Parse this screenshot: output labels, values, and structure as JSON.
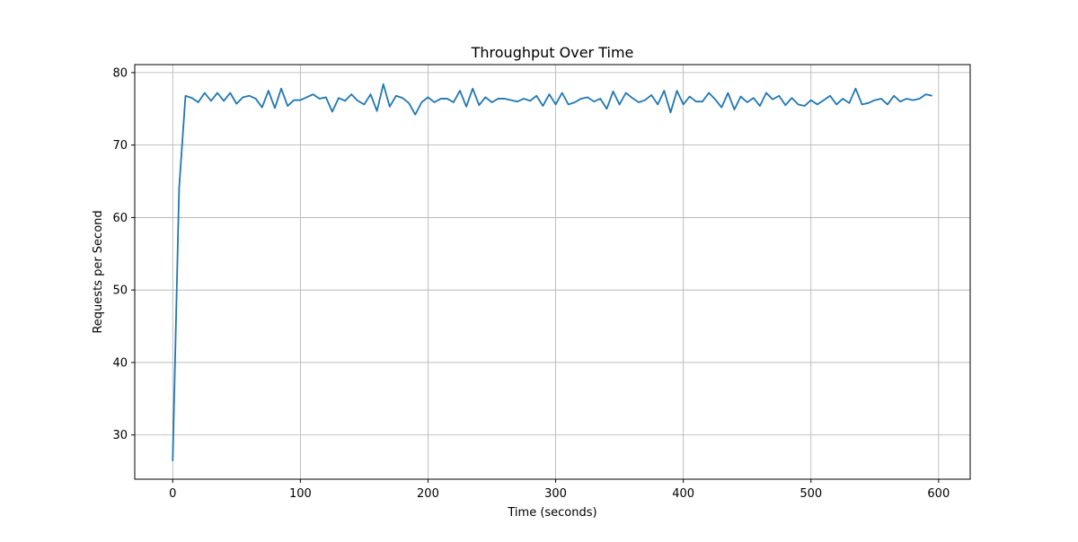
{
  "chart_data": {
    "type": "line",
    "title": "Throughput Over Time",
    "xlabel": "Time (seconds)",
    "ylabel": "Requests per Second",
    "xlim": [
      -29.75,
      624.75
    ],
    "ylim": [
      23.9,
      81.1
    ],
    "xticks": [
      0,
      100,
      200,
      300,
      400,
      500,
      600
    ],
    "yticks": [
      30,
      40,
      50,
      60,
      70,
      80
    ],
    "grid": true,
    "series": [
      {
        "color": "#1f77b4",
        "x": [
          0,
          5,
          10,
          15,
          20,
          25,
          30,
          35,
          40,
          45,
          50,
          55,
          60,
          65,
          70,
          75,
          80,
          85,
          90,
          95,
          100,
          105,
          110,
          115,
          120,
          125,
          130,
          135,
          140,
          145,
          150,
          155,
          160,
          165,
          170,
          175,
          180,
          185,
          190,
          195,
          200,
          205,
          210,
          215,
          220,
          225,
          230,
          235,
          240,
          245,
          250,
          255,
          260,
          265,
          270,
          275,
          280,
          285,
          290,
          295,
          300,
          305,
          310,
          315,
          320,
          325,
          330,
          335,
          340,
          345,
          350,
          355,
          360,
          365,
          370,
          375,
          380,
          385,
          390,
          395,
          400,
          405,
          410,
          415,
          420,
          425,
          430,
          435,
          440,
          445,
          450,
          455,
          460,
          465,
          470,
          475,
          480,
          485,
          490,
          495,
          500,
          505,
          510,
          515,
          520,
          525,
          530,
          535,
          540,
          545,
          550,
          555,
          560,
          565,
          570,
          575,
          580,
          585,
          590,
          595
        ],
        "values": [
          26.4,
          64.0,
          76.8,
          76.5,
          75.9,
          77.2,
          76.1,
          77.2,
          76.1,
          77.2,
          75.7,
          76.6,
          76.8,
          76.4,
          75.2,
          77.5,
          75.1,
          77.8,
          75.4,
          76.2,
          76.2,
          76.6,
          77.0,
          76.4,
          76.6,
          74.6,
          76.5,
          76.1,
          77.0,
          76.1,
          75.6,
          77.0,
          74.7,
          78.4,
          75.3,
          76.8,
          76.5,
          75.8,
          74.2,
          75.9,
          76.6,
          75.9,
          76.4,
          76.4,
          75.9,
          77.5,
          75.3,
          77.8,
          75.5,
          76.6,
          75.9,
          76.4,
          76.4,
          76.2,
          76.0,
          76.4,
          76.1,
          76.8,
          75.4,
          77.0,
          75.6,
          77.2,
          75.6,
          75.9,
          76.4,
          76.6,
          76.0,
          76.4,
          75.0,
          77.4,
          75.6,
          77.2,
          76.5,
          75.9,
          76.2,
          76.9,
          75.6,
          77.5,
          74.5,
          77.5,
          75.6,
          76.7,
          76.0,
          76.0,
          77.2,
          76.3,
          75.2,
          77.2,
          74.9,
          76.7,
          75.9,
          76.5,
          75.4,
          77.2,
          76.3,
          76.8,
          75.5,
          76.5,
          75.6,
          75.4,
          76.2,
          75.6,
          76.2,
          76.8,
          75.6,
          76.4,
          75.8,
          77.8,
          75.6,
          75.8,
          76.2,
          76.4,
          75.6,
          76.8,
          76.0,
          76.4,
          76.2,
          76.4,
          77.0,
          76.8
        ]
      }
    ]
  }
}
